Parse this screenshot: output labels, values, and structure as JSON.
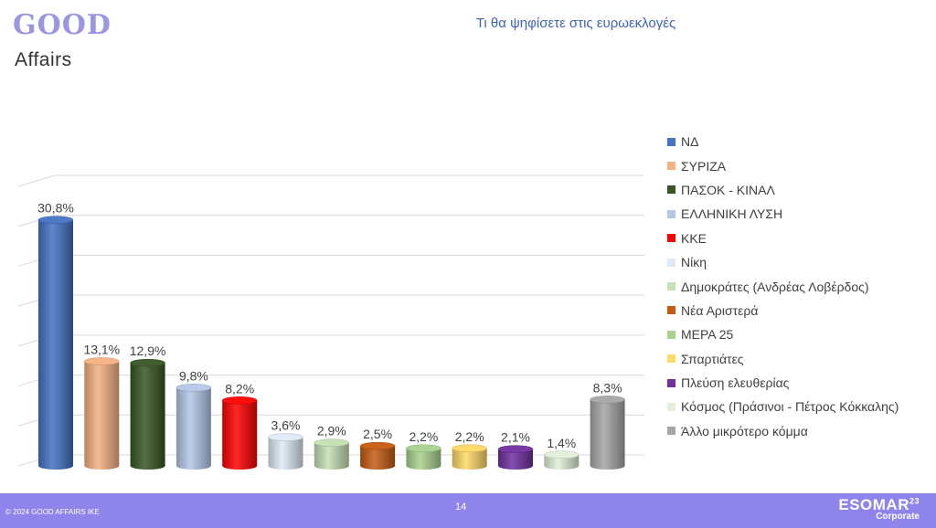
{
  "logo": {
    "line1": "GOOD",
    "line2": "Affairs"
  },
  "title": "Τι θα ψηφίσετε στις ευρωεκλογές",
  "chart_data": {
    "type": "bar",
    "title": "Τι θα ψηφίσετε στις ευρωεκλογές",
    "xlabel": "",
    "ylabel": "",
    "ylim": [
      0,
      35
    ],
    "grid": true,
    "legend_position": "right",
    "categories": [
      "ΝΔ",
      "ΣΥΡΙΖΑ",
      "ΠΑΣΟΚ - ΚΙΝΑΛ",
      "ΕΛΛΗΝΙΚΗ ΛΥΣΗ",
      "ΚΚΕ",
      "Νίκη",
      "Δημοκράτες (Ανδρέας Λοβέρδος)",
      "Νέα Αριστερά",
      "ΜΕΡΑ 25",
      "Σπαρτιάτες",
      "Πλεύση ελευθερίας",
      "Κόσμος (Πράσινοι - Πέτρος Κόκκαλης)",
      "Άλλο μικρότερο κόμμα"
    ],
    "values": [
      30.8,
      13.1,
      12.9,
      9.8,
      8.2,
      3.6,
      2.9,
      2.5,
      2.2,
      2.2,
      2.1,
      1.4,
      8.3
    ],
    "labels": [
      "30,8%",
      "13,1%",
      "12,9%",
      "9,8%",
      "8,2%",
      "3,6%",
      "2,9%",
      "2,5%",
      "2,2%",
      "2,2%",
      "2,1%",
      "1,4%",
      "8,3%"
    ],
    "colors": [
      "#4472c4",
      "#f4b183",
      "#375623",
      "#b4c7e7",
      "#ff0000",
      "#deebf7",
      "#c5e0b4",
      "#c55a11",
      "#a9d18e",
      "#ffd966",
      "#7030a0",
      "#e2f0d9",
      "#a6a6a6"
    ]
  },
  "footer": {
    "copyright": "© 2024 GOOD AFFAIRS IKE",
    "page": "14",
    "esomar": "ESOMAR",
    "esomar_sup": "23",
    "esomar_sub": "Corporate"
  }
}
